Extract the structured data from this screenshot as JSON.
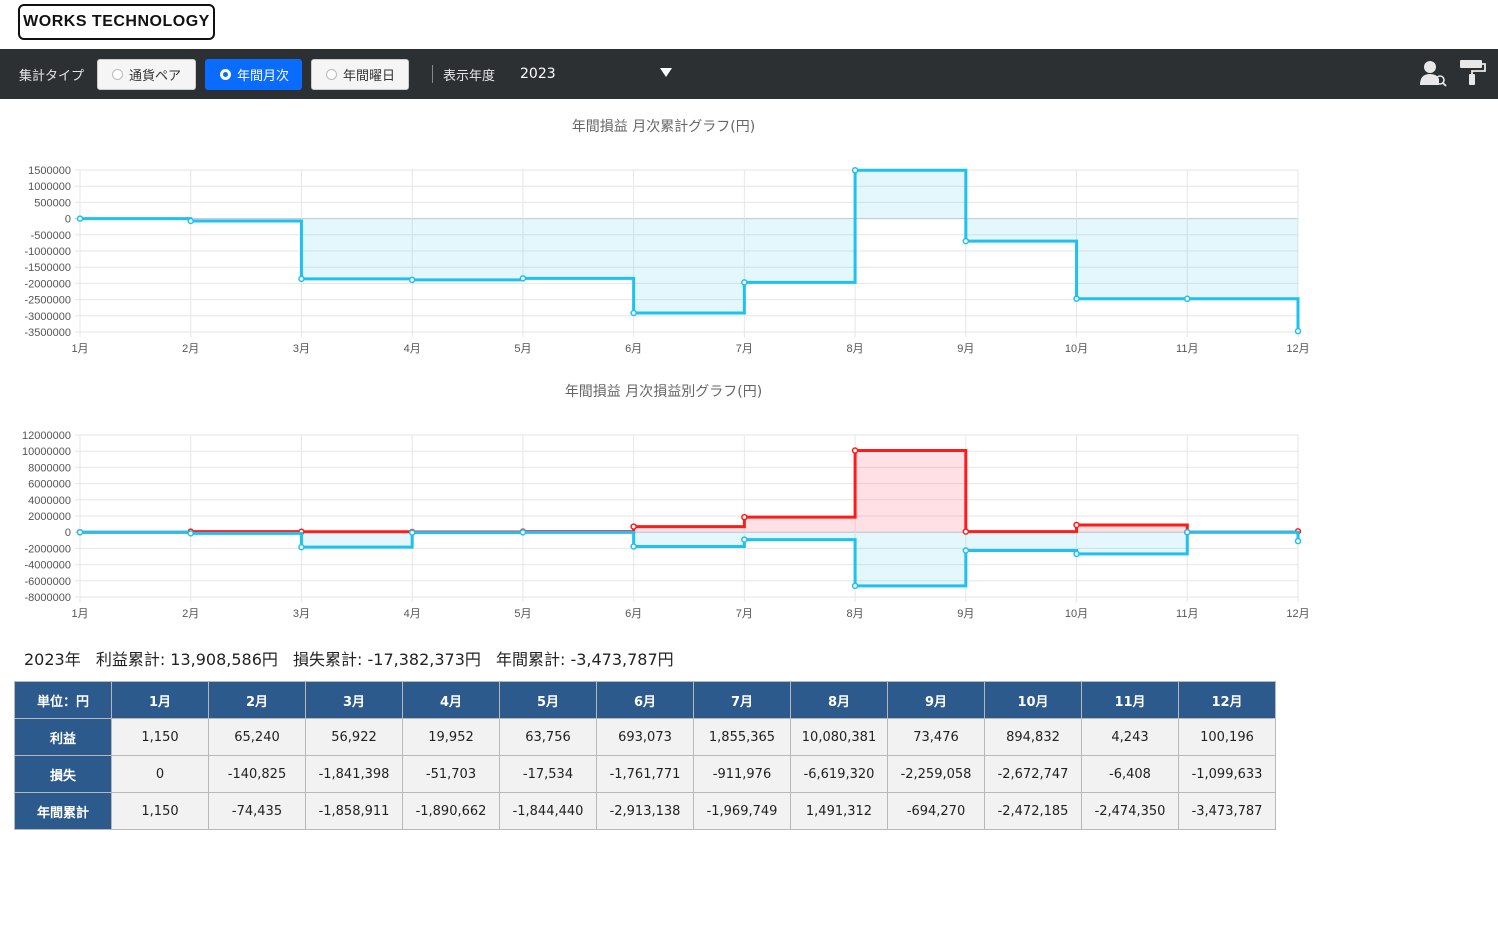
{
  "logo": "WORKS TECHNOLOGY",
  "toolbar": {
    "type_label": "集計タイプ",
    "options": [
      "通貨ペア",
      "年間月次",
      "年間曜日"
    ],
    "selected": "年間月次",
    "year_label": "表示年度",
    "year_value": "2023",
    "icons": [
      "user-search-icon",
      "paint-roller-icon"
    ]
  },
  "charts": {
    "cumulative_title": "年間損益 月次累計グラフ(円)",
    "monthly_title": "年間損益 月次損益別グラフ(円)"
  },
  "chart_data": [
    {
      "type": "line",
      "step": true,
      "title": "年間損益 月次累計グラフ(円)",
      "x": [
        "1月",
        "2月",
        "3月",
        "4月",
        "5月",
        "6月",
        "7月",
        "8月",
        "9月",
        "10月",
        "11月",
        "12月"
      ],
      "ylim": [
        -3500000,
        1500000
      ],
      "yticks": [
        1500000,
        1000000,
        500000,
        0,
        -500000,
        -1000000,
        -1500000,
        -2000000,
        -2500000,
        -3000000,
        -3500000
      ],
      "series": [
        {
          "color": "#1ec1f0",
          "values": [
            1150,
            -74435,
            -1858911,
            -1890662,
            -1844440,
            -2913138,
            -1969749,
            1491312,
            -694270,
            -2472185,
            -2474350,
            -3473787
          ]
        }
      ]
    },
    {
      "type": "line",
      "step": true,
      "title": "年間損益 月次損益別グラフ(円)",
      "x": [
        "1月",
        "2月",
        "3月",
        "4月",
        "5月",
        "6月",
        "7月",
        "8月",
        "9月",
        "10月",
        "11月",
        "12月"
      ],
      "ylim": [
        -8000000,
        12000000
      ],
      "yticks": [
        12000000,
        10000000,
        8000000,
        6000000,
        4000000,
        2000000,
        0,
        -2000000,
        -4000000,
        -6000000,
        -8000000
      ],
      "series": [
        {
          "color": "#ff1a1a",
          "values": [
            1150,
            65240,
            56922,
            19952,
            63756,
            693073,
            1855365,
            10080381,
            73476,
            894832,
            4243,
            100196
          ]
        },
        {
          "color": "#1ec1f0",
          "values": [
            0,
            -140825,
            -1841398,
            -51703,
            -17534,
            -1761771,
            -911976,
            -6619320,
            -2259058,
            -2672747,
            -6408,
            -1099633
          ]
        }
      ]
    }
  ],
  "summary": {
    "year": "2023年",
    "profit": "利益累計: 13,908,586円",
    "loss": "損失累計: -17,382,373円",
    "total": "年間累計: -3,473,787円"
  },
  "table": {
    "corner": "単位：円",
    "months": [
      "1月",
      "2月",
      "3月",
      "4月",
      "5月",
      "6月",
      "7月",
      "8月",
      "9月",
      "10月",
      "11月",
      "12月"
    ],
    "rows": [
      {
        "label": "利益",
        "values": [
          "1,150",
          "65,240",
          "56,922",
          "19,952",
          "63,756",
          "693,073",
          "1,855,365",
          "10,080,381",
          "73,476",
          "894,832",
          "4,243",
          "100,196"
        ]
      },
      {
        "label": "損失",
        "values": [
          "0",
          "-140,825",
          "-1,841,398",
          "-51,703",
          "-17,534",
          "-1,761,771",
          "-911,976",
          "-6,619,320",
          "-2,259,058",
          "-2,672,747",
          "-6,408",
          "-1,099,633"
        ]
      },
      {
        "label": "年間累計",
        "values": [
          "1,150",
          "-74,435",
          "-1,858,911",
          "-1,890,662",
          "-1,844,440",
          "-2,913,138",
          "-1,969,749",
          "1,491,312",
          "-694,270",
          "-2,472,185",
          "-2,474,350",
          "-3,473,787"
        ]
      }
    ]
  }
}
